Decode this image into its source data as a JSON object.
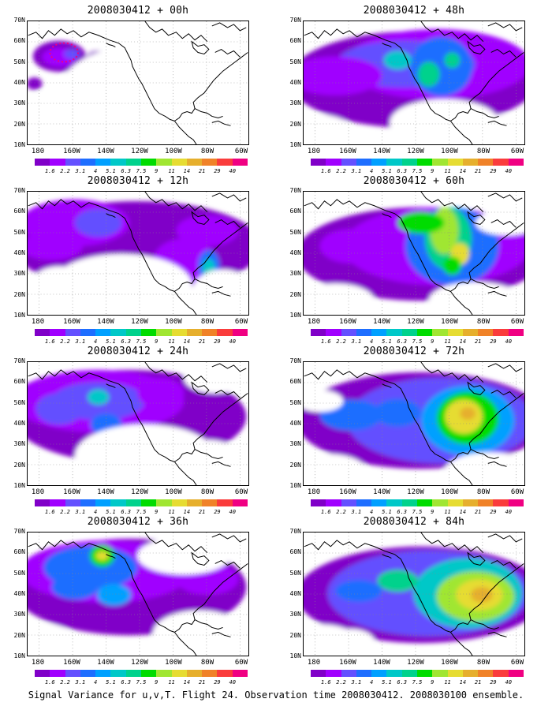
{
  "panels": [
    {
      "title": "2008030412 + 00h"
    },
    {
      "title": "2008030412 + 48h"
    },
    {
      "title": "2008030412 + 12h"
    },
    {
      "title": "2008030412 + 60h"
    },
    {
      "title": "2008030412 + 24h"
    },
    {
      "title": "2008030412 + 72h"
    },
    {
      "title": "2008030412 + 36h"
    },
    {
      "title": "2008030412 + 84h"
    }
  ],
  "lat_labels": [
    "70N",
    "60N",
    "50N",
    "40N",
    "30N",
    "20N",
    "10N"
  ],
  "lon_labels": [
    "180",
    "160W",
    "140W",
    "120W",
    "100W",
    "80W",
    "60W"
  ],
  "colorbar": {
    "levels": [
      "1.6",
      "2.2",
      "3.1",
      "4",
      "5.1",
      "6.3",
      "7.5",
      "9",
      "11",
      "14",
      "21",
      "29",
      "40"
    ],
    "colors": [
      "#8000c8",
      "#a000ff",
      "#6450ff",
      "#1e6eff",
      "#00a0ff",
      "#00c8c8",
      "#00d28c",
      "#00dc00",
      "#a0e632",
      "#e6dc32",
      "#e6af2d",
      "#f08228",
      "#fa3c3c",
      "#f00082"
    ]
  },
  "caption": "Signal Variance for u,v,T. Flight 24. Observation time 2008030412. 2008030100 ensemble.",
  "icons": {
    "observation_marker": "dotted-circle-icon"
  }
}
